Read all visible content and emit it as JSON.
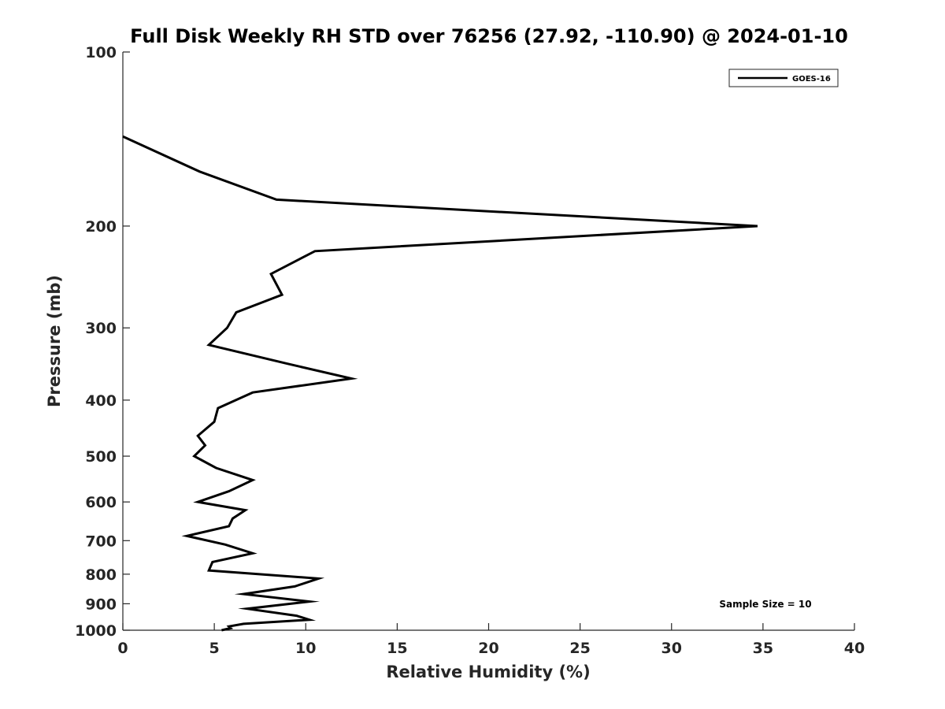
{
  "chart_data": {
    "type": "line",
    "title": "Full Disk Weekly RH STD over 76256 (27.92, -110.90) @ 2024-01-10",
    "xlabel": "Relative Humidity (%)",
    "ylabel": "Pressure (mb)",
    "xlim": [
      0,
      40
    ],
    "ylim": [
      100,
      1000
    ],
    "y_scale": "log",
    "y_reversed": true,
    "x_ticks": [
      0,
      5,
      10,
      15,
      20,
      25,
      30,
      35,
      40
    ],
    "y_ticks": [
      100,
      200,
      300,
      400,
      500,
      600,
      700,
      800,
      900,
      1000
    ],
    "grid": false,
    "legend_position": "top-right",
    "annotation": "Sample Size = 10",
    "series": [
      {
        "name": "GOES-16",
        "color": "#000000",
        "points": [
          [
            0.0,
            140
          ],
          [
            4.2,
            161
          ],
          [
            8.4,
            180
          ],
          [
            34.7,
            200
          ],
          [
            10.5,
            221
          ],
          [
            8.1,
            242
          ],
          [
            8.7,
            263
          ],
          [
            6.2,
            282
          ],
          [
            5.7,
            300
          ],
          [
            4.7,
            321
          ],
          [
            9.0,
            346
          ],
          [
            12.5,
            367
          ],
          [
            7.1,
            388
          ],
          [
            5.2,
            413
          ],
          [
            5.0,
            436
          ],
          [
            4.1,
            461
          ],
          [
            4.5,
            479
          ],
          [
            3.9,
            500
          ],
          [
            5.1,
            524
          ],
          [
            7.1,
            550
          ],
          [
            5.8,
            575
          ],
          [
            4.1,
            600
          ],
          [
            6.7,
            620
          ],
          [
            6.0,
            641
          ],
          [
            5.8,
            661
          ],
          [
            3.5,
            687
          ],
          [
            5.6,
            711
          ],
          [
            7.1,
            736
          ],
          [
            4.9,
            762
          ],
          [
            4.7,
            788
          ],
          [
            10.7,
            814
          ],
          [
            9.4,
            840
          ],
          [
            6.6,
            866
          ],
          [
            10.2,
            892
          ],
          [
            6.8,
            918
          ],
          [
            9.5,
            944
          ],
          [
            10.2,
            959
          ],
          [
            6.6,
            975
          ],
          [
            5.8,
            985
          ],
          [
            5.9,
            992
          ],
          [
            5.4,
            1000
          ]
        ]
      }
    ]
  }
}
